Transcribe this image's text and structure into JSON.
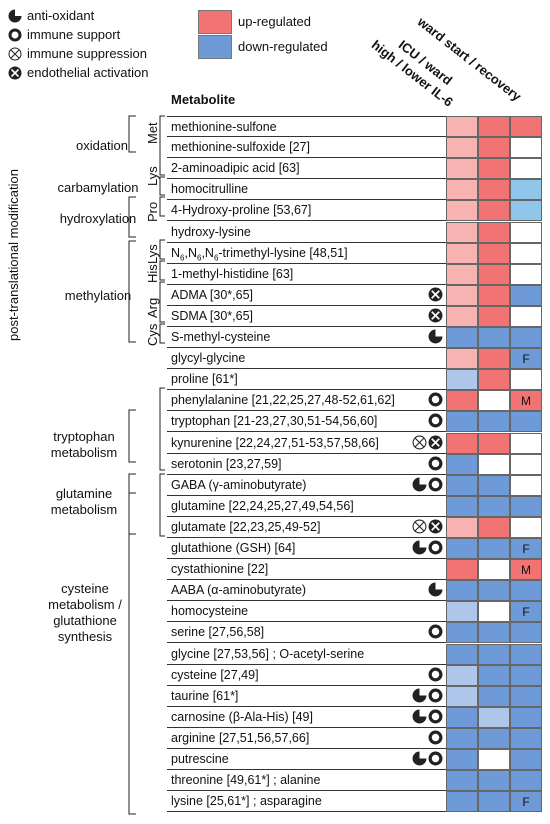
{
  "legend": {
    "symbols": [
      {
        "icon": "anti-oxidant-icon",
        "label": "anti-oxidant"
      },
      {
        "icon": "immune-support-icon",
        "label": "immune support"
      },
      {
        "icon": "immune-suppression-icon",
        "label": "immune suppression"
      },
      {
        "icon": "endothelial-activation-icon",
        "label": "endothelial activation"
      }
    ],
    "up_label": "up-regulated",
    "down_label": "down-regulated"
  },
  "colors": {
    "up_strong": "#f27373",
    "up_light": "#f7b2b2",
    "down_strong": "#6e9ad8",
    "down_light": "#aec6ea",
    "teal": "#8fc6ea",
    "none": "#ffffff"
  },
  "columns": [
    "high / lower IL-6",
    "ICU / ward",
    "ward start / recovery"
  ],
  "table_header": "Metabolite",
  "side_title": "post-translational modification",
  "categories": [
    {
      "label": "oxidation"
    },
    {
      "label": "carbamylation"
    },
    {
      "label": "hydroxylation"
    },
    {
      "label": "methylation"
    },
    {
      "label": "tryptophan metabolism"
    },
    {
      "label": "glutamine metabolism"
    },
    {
      "label": "cysteine metabolism / glutathione synthesis"
    }
  ],
  "residues": [
    "Met",
    "Lys",
    "Pro",
    "Lys",
    "His",
    "Arg",
    "Cys"
  ],
  "rows": [
    {
      "name": "methionine-sulfone",
      "icons": [],
      "cells": [
        "up_light",
        "up_strong",
        "up_strong"
      ],
      "marks": [
        "",
        "",
        ""
      ]
    },
    {
      "name": "methionine-sulfoxide [27]",
      "icons": [],
      "cells": [
        "up_light",
        "up_strong",
        "none"
      ],
      "marks": [
        "",
        "",
        ""
      ]
    },
    {
      "name": "2-aminoadipic acid [63]",
      "icons": [],
      "cells": [
        "up_light",
        "up_strong",
        "none"
      ],
      "marks": [
        "",
        "",
        ""
      ]
    },
    {
      "name": "homocitrulline",
      "icons": [],
      "cells": [
        "up_light",
        "up_strong",
        "teal"
      ],
      "marks": [
        "",
        "",
        ""
      ]
    },
    {
      "name": "4-Hydroxy-proline [53,67]",
      "icons": [],
      "cells": [
        "up_light",
        "up_strong",
        "teal"
      ],
      "marks": [
        "",
        "",
        ""
      ]
    },
    {
      "name": "hydroxy-lysine",
      "icons": [],
      "cells": [
        "up_light",
        "up_strong",
        "none"
      ],
      "marks": [
        "",
        "",
        ""
      ]
    },
    {
      "name": "N6,N6,N6-trimethyl-lysine [48,51]",
      "icons": [],
      "cells": [
        "up_light",
        "up_strong",
        "none"
      ],
      "marks": [
        "",
        "",
        ""
      ]
    },
    {
      "name": "1-methyl-histidine [63]",
      "icons": [],
      "cells": [
        "up_light",
        "up_strong",
        "none"
      ],
      "marks": [
        "",
        "",
        ""
      ]
    },
    {
      "name": "ADMA [30*,65]",
      "icons": [
        "endothelial"
      ],
      "cells": [
        "up_light",
        "up_strong",
        "down_strong"
      ],
      "marks": [
        "",
        "",
        ""
      ]
    },
    {
      "name": "SDMA [30*,65]",
      "icons": [
        "endothelial"
      ],
      "cells": [
        "up_light",
        "up_strong",
        "none"
      ],
      "marks": [
        "",
        "",
        ""
      ]
    },
    {
      "name": "S-methyl-cysteine",
      "icons": [
        "antioxidant"
      ],
      "cells": [
        "down_strong",
        "down_strong",
        "down_strong"
      ],
      "marks": [
        "",
        "",
        ""
      ]
    },
    {
      "name": "glycyl-glycine",
      "icons": [],
      "cells": [
        "up_light",
        "up_strong",
        "down_strong"
      ],
      "marks": [
        "",
        "",
        "F"
      ]
    },
    {
      "name": "proline [61*]",
      "icons": [],
      "cells": [
        "down_light",
        "up_strong",
        "none"
      ],
      "marks": [
        "",
        "",
        ""
      ]
    },
    {
      "name": "phenylalanine [21,22,25,27,48-52,61,62]",
      "icons": [
        "immune"
      ],
      "cells": [
        "up_strong",
        "none",
        "up_strong"
      ],
      "marks": [
        "",
        "",
        "M"
      ]
    },
    {
      "name": "tryptophan [21-23,27,30,51-54,56,60]",
      "icons": [
        "immune"
      ],
      "cells": [
        "down_strong",
        "down_strong",
        "down_strong"
      ],
      "marks": [
        "",
        "",
        ""
      ]
    },
    {
      "name": "kynurenine [22,24,27,51-53,57,58,66]",
      "icons": [
        "suppression",
        "endothelial"
      ],
      "cells": [
        "up_strong",
        "up_strong",
        "none"
      ],
      "marks": [
        "",
        "",
        ""
      ]
    },
    {
      "name": "serotonin [23,27,59]",
      "icons": [
        "immune"
      ],
      "cells": [
        "down_strong",
        "none",
        "none"
      ],
      "marks": [
        "",
        "",
        ""
      ]
    },
    {
      "name": "GABA (γ-aminobutyrate)",
      "icons": [
        "antioxidant",
        "immune"
      ],
      "cells": [
        "down_strong",
        "down_strong",
        "none"
      ],
      "marks": [
        "",
        "",
        ""
      ]
    },
    {
      "name": "glutamine [22,24,25,27,49,54,56]",
      "icons": [],
      "cells": [
        "down_strong",
        "down_strong",
        "down_strong"
      ],
      "marks": [
        "",
        "",
        ""
      ]
    },
    {
      "name": "glutamate [22,23,25,49-52]",
      "icons": [
        "suppression",
        "endothelial"
      ],
      "cells": [
        "up_light",
        "up_strong",
        "none"
      ],
      "marks": [
        "",
        "",
        ""
      ]
    },
    {
      "name": "glutathione (GSH) [64]",
      "icons": [
        "antioxidant",
        "immune"
      ],
      "cells": [
        "down_strong",
        "down_strong",
        "down_strong"
      ],
      "marks": [
        "",
        "",
        "F"
      ]
    },
    {
      "name": "cystathionine [22]",
      "icons": [],
      "cells": [
        "up_strong",
        "none",
        "up_strong"
      ],
      "marks": [
        "",
        "",
        "M"
      ]
    },
    {
      "name": "AABA (α-aminobutyrate)",
      "icons": [
        "antioxidant"
      ],
      "cells": [
        "down_strong",
        "down_strong",
        "down_strong"
      ],
      "marks": [
        "",
        "",
        ""
      ]
    },
    {
      "name": "homocysteine",
      "icons": [],
      "cells": [
        "down_light",
        "none",
        "down_strong"
      ],
      "marks": [
        "",
        "",
        "F"
      ]
    },
    {
      "name": "serine [27,56,58]",
      "icons": [
        "immune"
      ],
      "cells": [
        "down_strong",
        "down_strong",
        "down_strong"
      ],
      "marks": [
        "",
        "",
        ""
      ]
    },
    {
      "name": "glycine [27,53,56] ; O-acetyl-serine",
      "icons": [],
      "cells": [
        "down_strong",
        "down_strong",
        "down_strong"
      ],
      "marks": [
        "",
        "",
        ""
      ]
    },
    {
      "name": "cysteine [27,49]",
      "icons": [
        "immune"
      ],
      "cells": [
        "down_light",
        "down_strong",
        "down_strong"
      ],
      "marks": [
        "",
        "",
        ""
      ]
    },
    {
      "name": "taurine [61*]",
      "icons": [
        "antioxidant",
        "immune"
      ],
      "cells": [
        "down_light",
        "down_strong",
        "down_strong"
      ],
      "marks": [
        "",
        "",
        ""
      ]
    },
    {
      "name": "carnosine (β-Ala-His) [49]",
      "icons": [
        "antioxidant",
        "immune"
      ],
      "cells": [
        "down_strong",
        "down_light",
        "down_strong"
      ],
      "marks": [
        "",
        "",
        ""
      ]
    },
    {
      "name": "arginine [27,51,56,57,66]",
      "icons": [
        "immune"
      ],
      "cells": [
        "down_strong",
        "down_strong",
        "down_strong"
      ],
      "marks": [
        "",
        "",
        ""
      ]
    },
    {
      "name": "putrescine",
      "icons": [
        "antioxidant",
        "immune"
      ],
      "cells": [
        "down_strong",
        "none",
        "down_strong"
      ],
      "marks": [
        "",
        "",
        ""
      ]
    },
    {
      "name": "threonine [49,61*] ; alanine",
      "icons": [],
      "cells": [
        "down_strong",
        "down_strong",
        "down_strong"
      ],
      "marks": [
        "",
        "",
        ""
      ]
    },
    {
      "name": "lysine [25,61*] ; asparagine",
      "icons": [],
      "cells": [
        "down_strong",
        "down_strong",
        "down_strong"
      ],
      "marks": [
        "",
        "",
        "F"
      ]
    }
  ]
}
